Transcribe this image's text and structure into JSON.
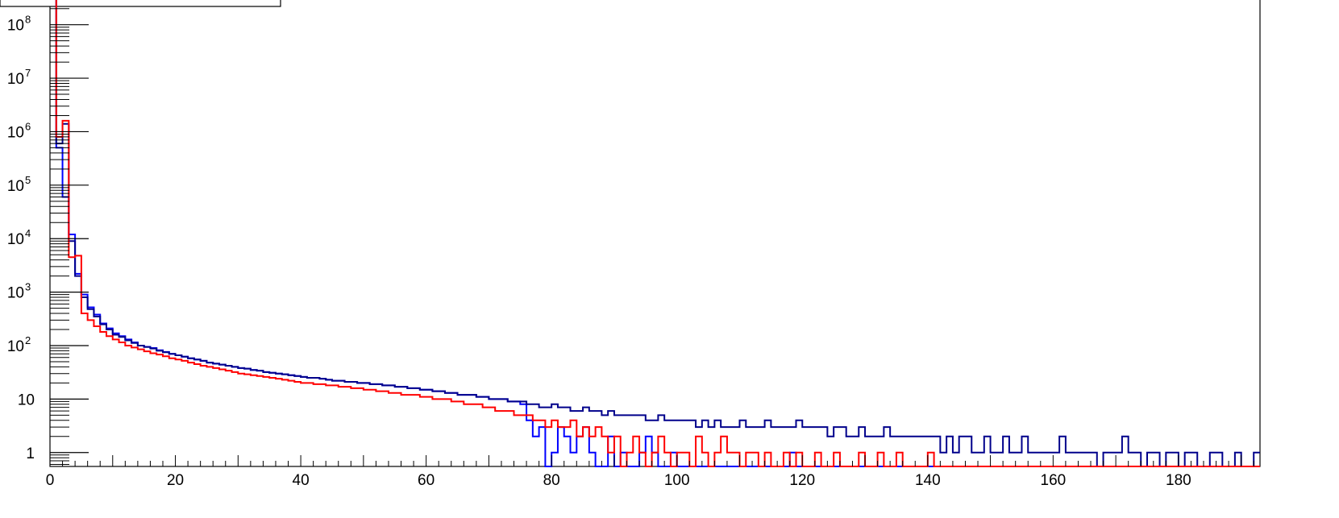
{
  "chart_data": {
    "type": "line",
    "title": "",
    "xlabel": "",
    "ylabel": "",
    "xlim": [
      0,
      193
    ],
    "ylim": [
      0.55,
      300000000
    ],
    "y_scale": "log",
    "grid": false,
    "legend": "none",
    "x_ticks": [
      0,
      20,
      40,
      60,
      80,
      100,
      120,
      140,
      160,
      180
    ],
    "x_tick_labels": [
      "0",
      "20",
      "40",
      "60",
      "80",
      "100",
      "120",
      "140",
      "160",
      "180"
    ],
    "y_ticks": [
      {
        "value": 1,
        "base": "1",
        "exp": ""
      },
      {
        "value": 10,
        "base": "10",
        "exp": ""
      },
      {
        "value": 100,
        "base": "10",
        "exp": "2"
      },
      {
        "value": 1000,
        "base": "10",
        "exp": "3"
      },
      {
        "value": 10000,
        "base": "10",
        "exp": "4"
      },
      {
        "value": 100000,
        "base": "10",
        "exp": "5"
      },
      {
        "value": 1000000,
        "base": "10",
        "exp": "6"
      },
      {
        "value": 10000000,
        "base": "10",
        "exp": "7"
      },
      {
        "value": 100000000,
        "base": "10",
        "exp": "8"
      }
    ],
    "series": [
      {
        "color": "#0000ff",
        "bin_start": 0,
        "bin_width": 1,
        "values": [
          300000000,
          500000,
          60000,
          12000,
          2200,
          900,
          520,
          380,
          260,
          210,
          170,
          150,
          130,
          115,
          100,
          95,
          90,
          82,
          76,
          70,
          66,
          62,
          58,
          55,
          52,
          48,
          46,
          44,
          42,
          40,
          38,
          37,
          35,
          34,
          32,
          31,
          30,
          29,
          28,
          27,
          26,
          25,
          25,
          24,
          23,
          22,
          22,
          21,
          21,
          20,
          20,
          19,
          19,
          18,
          18,
          17,
          17,
          16,
          16,
          15,
          15,
          14,
          14,
          13,
          13,
          12,
          12,
          12,
          11,
          11,
          10,
          10,
          10,
          9,
          9,
          8,
          4,
          2,
          3,
          0,
          1,
          3,
          2,
          1,
          2,
          3,
          1,
          0,
          0,
          2,
          0,
          1,
          0,
          0,
          1,
          2,
          1,
          0,
          0,
          1,
          0,
          0,
          0,
          0,
          0,
          0,
          0,
          0,
          0,
          0,
          0,
          0,
          0,
          0,
          0,
          0,
          0,
          0,
          1,
          0,
          0,
          0,
          0,
          0,
          0,
          0,
          0,
          0,
          0,
          0,
          0,
          0,
          0,
          0,
          0,
          0,
          0,
          0,
          0,
          0,
          0,
          0,
          0,
          0,
          0,
          0,
          0,
          0,
          0,
          0,
          0,
          0,
          0,
          0,
          0,
          0,
          0,
          0,
          0,
          0,
          0,
          0,
          0,
          0,
          0,
          0,
          0,
          0,
          0,
          0,
          0,
          0,
          0,
          0,
          0,
          0,
          0,
          0,
          0,
          0,
          0,
          0,
          0,
          0,
          0,
          0,
          0,
          0,
          0,
          0,
          0,
          0,
          0
        ]
      },
      {
        "color": "#00008b",
        "bin_start": 0,
        "bin_width": 1,
        "values": [
          300000000,
          600000,
          1400000,
          9000,
          2000,
          800,
          480,
          350,
          250,
          200,
          160,
          145,
          125,
          112,
          100,
          94,
          88,
          80,
          75,
          70,
          66,
          62,
          58,
          55,
          52,
          48,
          46,
          44,
          42,
          40,
          38,
          37,
          35,
          34,
          32,
          31,
          30,
          29,
          28,
          27,
          26,
          25,
          25,
          24,
          23,
          22,
          22,
          21,
          21,
          20,
          20,
          19,
          19,
          18,
          18,
          17,
          17,
          16,
          16,
          15,
          15,
          14,
          14,
          13,
          13,
          12,
          12,
          12,
          11,
          11,
          10,
          10,
          10,
          9,
          9,
          9,
          8,
          8,
          7,
          7,
          8,
          7,
          7,
          6,
          6,
          7,
          6,
          6,
          5,
          6,
          5,
          5,
          5,
          5,
          5,
          4,
          4,
          5,
          4,
          4,
          4,
          4,
          4,
          3,
          4,
          3,
          4,
          3,
          3,
          3,
          4,
          3,
          3,
          3,
          4,
          3,
          3,
          3,
          3,
          4,
          3,
          3,
          3,
          3,
          2,
          3,
          3,
          2,
          2,
          3,
          2,
          2,
          2,
          3,
          2,
          2,
          2,
          2,
          2,
          2,
          2,
          2,
          1,
          2,
          1,
          2,
          2,
          1,
          1,
          2,
          1,
          1,
          2,
          1,
          1,
          2,
          1,
          1,
          1,
          1,
          1,
          2,
          1,
          1,
          1,
          1,
          1,
          0,
          1,
          1,
          1,
          2,
          1,
          1,
          0,
          1,
          1,
          0,
          1,
          1,
          0,
          1,
          1,
          0,
          0,
          1,
          1,
          0,
          0,
          1,
          0,
          0,
          1
        ]
      },
      {
        "color": "#ff0000",
        "bin_start": 0,
        "bin_width": 1,
        "values": [
          300000000,
          800000,
          1600000,
          4500,
          4800,
          400,
          300,
          230,
          180,
          150,
          130,
          115,
          100,
          92,
          85,
          78,
          72,
          68,
          63,
          58,
          55,
          52,
          48,
          45,
          42,
          40,
          38,
          36,
          34,
          32,
          30,
          29,
          28,
          27,
          26,
          25,
          24,
          23,
          22,
          21,
          20,
          20,
          19,
          19,
          18,
          18,
          17,
          17,
          16,
          16,
          15,
          15,
          14,
          14,
          13,
          13,
          12,
          12,
          12,
          11,
          11,
          10,
          10,
          10,
          9,
          9,
          8,
          8,
          8,
          7,
          7,
          6,
          6,
          6,
          5,
          5,
          5,
          4,
          4,
          3,
          4,
          3,
          3,
          4,
          2,
          3,
          2,
          3,
          2,
          1,
          2,
          0,
          1,
          2,
          1,
          0,
          1,
          2,
          1,
          0,
          1,
          1,
          0,
          2,
          1,
          0,
          1,
          2,
          1,
          1,
          0,
          1,
          1,
          0,
          1,
          0,
          0,
          1,
          0,
          1,
          0,
          0,
          1,
          0,
          0,
          1,
          0,
          0,
          0,
          1,
          0,
          0,
          1,
          0,
          0,
          1,
          0,
          0,
          0,
          0,
          1,
          0,
          0,
          0,
          0,
          0,
          0,
          0,
          0,
          0,
          0,
          0,
          0,
          0,
          0,
          0,
          0,
          0,
          0,
          0,
          0,
          0,
          0,
          0,
          0,
          0,
          0,
          0,
          0,
          0,
          0,
          0,
          0,
          0,
          0,
          0,
          0,
          0,
          0,
          0,
          0,
          0,
          0,
          0,
          0,
          0,
          0,
          0,
          0,
          0,
          0,
          0,
          0
        ]
      }
    ]
  }
}
